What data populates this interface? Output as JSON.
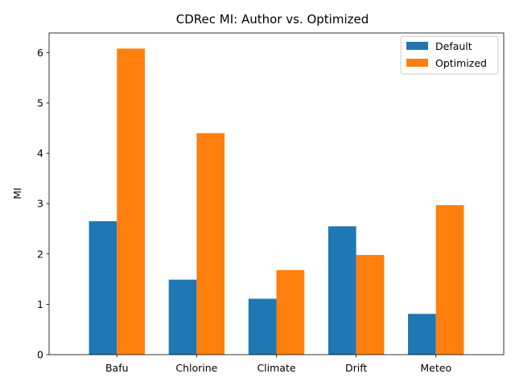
{
  "chart_data": {
    "type": "bar",
    "title": "CDRec MI: Author vs. Optimized",
    "xlabel": "",
    "ylabel": "MI",
    "categories": [
      "Bafu",
      "Chlorine",
      "Climate",
      "Drift",
      "Meteo"
    ],
    "series": [
      {
        "name": "Default",
        "color": "#1f77b4",
        "values": [
          2.65,
          1.49,
          1.11,
          2.55,
          0.81
        ]
      },
      {
        "name": "Optimized",
        "color": "#ff7f0e",
        "values": [
          6.08,
          4.4,
          1.68,
          1.98,
          2.97
        ]
      }
    ],
    "ylim": [
      0,
      6.39
    ],
    "yticks": [
      "0",
      "1",
      "2",
      "3",
      "4",
      "5",
      "6"
    ],
    "grid": false,
    "legend_position": "top-right"
  }
}
